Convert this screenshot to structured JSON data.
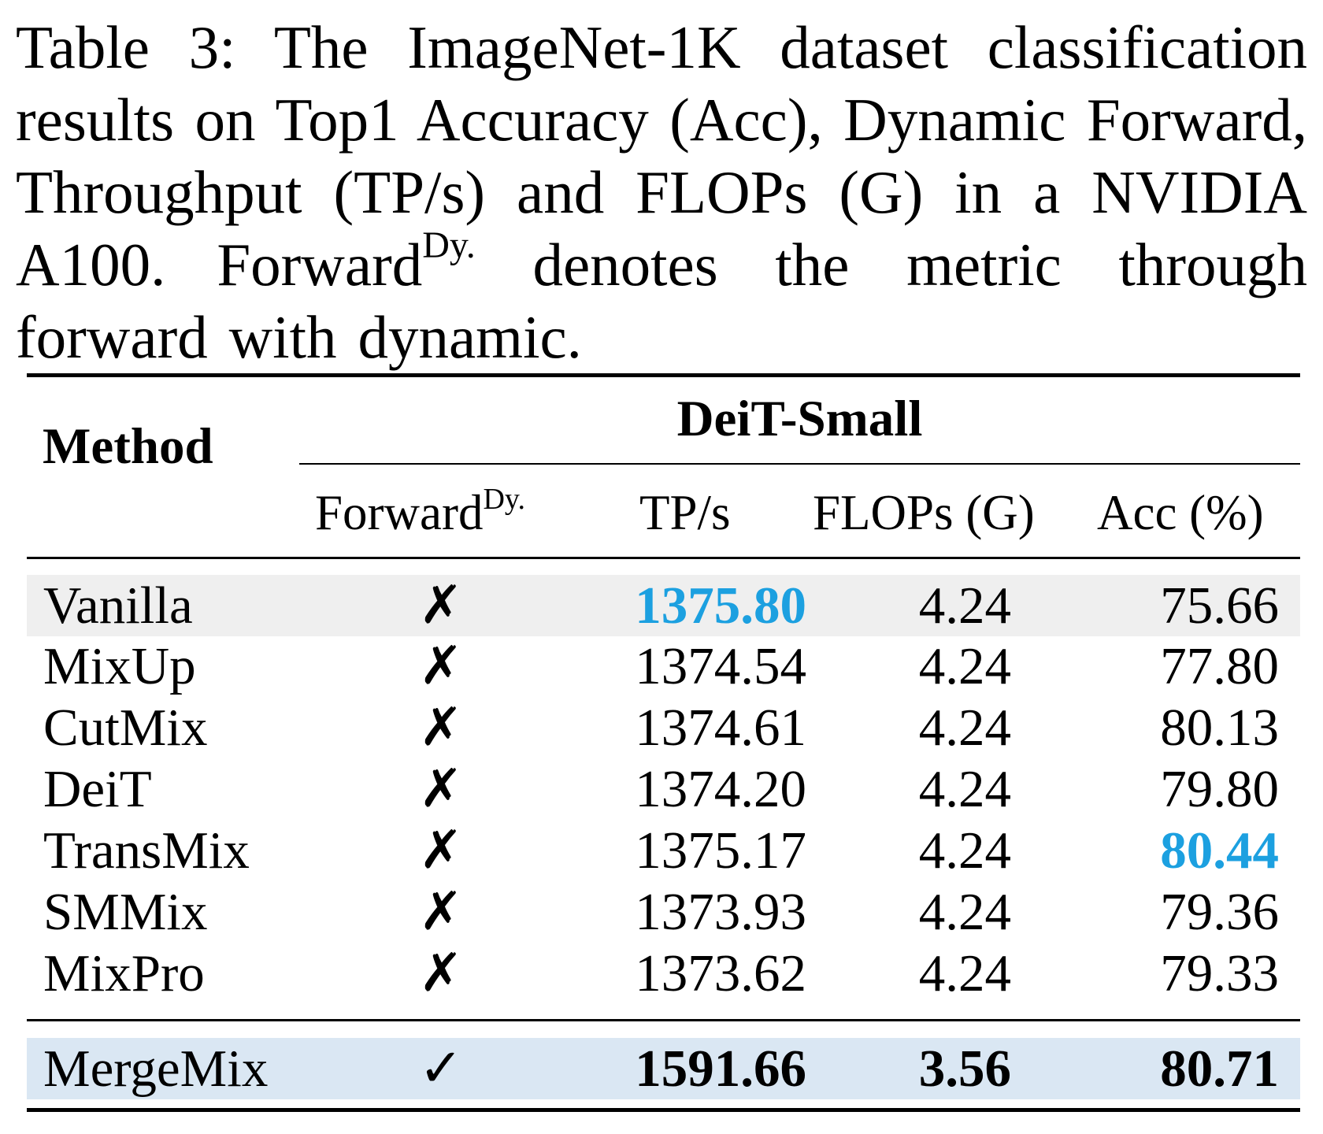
{
  "caption": {
    "part1": "Table 3: The ImageNet-1K dataset classification results on Top1 Accuracy (Acc), Dynamic Forward, Throughput (TP/s) and FLOPs (G) in a NVIDIA A100. Forward",
    "sup": "Dy.",
    "part2": " denotes the metric through forward with dynamic."
  },
  "table": {
    "method_header": "Method",
    "group_header": "DeiT-Small",
    "columns": {
      "forward": "Forward",
      "forward_sup": "Dy.",
      "tps": "TP/s",
      "flops": "FLOPs (G)",
      "acc": "Acc (%)"
    },
    "rows": [
      {
        "method": "Vanilla",
        "forward": "✗",
        "tps": "1375.80",
        "flops": "4.24",
        "acc": "75.66"
      },
      {
        "method": "MixUp",
        "forward": "✗",
        "tps": "1374.54",
        "flops": "4.24",
        "acc": "77.80"
      },
      {
        "method": "CutMix",
        "forward": "✗",
        "tps": "1374.61",
        "flops": "4.24",
        "acc": "80.13"
      },
      {
        "method": "DeiT",
        "forward": "✗",
        "tps": "1374.20",
        "flops": "4.24",
        "acc": "79.80"
      },
      {
        "method": "TransMix",
        "forward": "✗",
        "tps": "1375.17",
        "flops": "4.24",
        "acc": "80.44"
      },
      {
        "method": "SMMix",
        "forward": "✗",
        "tps": "1373.93",
        "flops": "4.24",
        "acc": "79.36"
      },
      {
        "method": "MixPro",
        "forward": "✗",
        "tps": "1373.62",
        "flops": "4.24",
        "acc": "79.33"
      },
      {
        "method": "MergeMix",
        "forward": "✓",
        "tps": "1591.66",
        "flops": "3.56",
        "acc": "80.71"
      }
    ],
    "highlight_color": "#1ca0e0",
    "shade_grey": "#efefef",
    "shade_blue": "#dae7f3"
  }
}
